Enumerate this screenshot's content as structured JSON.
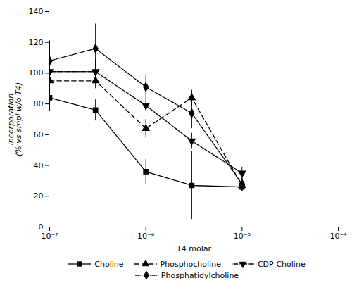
{
  "chart_data": {
    "type": "line",
    "xlabel": "T4 molar",
    "ylabel": "incorporation\n(% vs smpl w/o T4)",
    "log": "x",
    "xlim": [
      1e-07,
      0.0001
    ],
    "xticks": [
      {
        "value": 1e-07,
        "label": "10⁻⁷"
      },
      {
        "value": 1e-06,
        "label": "10⁻⁶"
      },
      {
        "value": 1e-05,
        "label": "10⁻⁵"
      },
      {
        "value": 0.0001,
        "label": "10⁻⁴"
      }
    ],
    "ylim": [
      0,
      140
    ],
    "yticks": [
      0,
      20,
      40,
      60,
      80,
      100,
      120,
      140
    ],
    "color": "black",
    "legend": "bottom",
    "x": [
      1e-07,
      3e-07,
      1e-06,
      3e-06,
      1e-05
    ],
    "series": [
      {
        "name": "Choline",
        "values": [
          84,
          76,
          36,
          27,
          26
        ],
        "yerr": [
          9,
          7,
          8,
          22,
          3
        ],
        "marker": "square",
        "line_style": "solid"
      },
      {
        "name": "Phosphocholine",
        "values": [
          95,
          95,
          64,
          84,
          27
        ],
        "yerr": [
          6,
          5,
          6,
          5,
          4
        ],
        "marker": "triangle-up",
        "line_style": "dashed"
      },
      {
        "name": "CDP-Choline",
        "values": [
          101,
          101,
          79,
          56,
          35
        ],
        "yerr": [
          8,
          8,
          4,
          5,
          4
        ],
        "marker": "triangle-down",
        "line_style": "dotted_dash"
      },
      {
        "name": "Phosphatidylcholine",
        "values": [
          108,
          116,
          91,
          74,
          28
        ],
        "yerr": [
          13,
          16,
          8,
          10,
          5
        ],
        "marker": "diamond",
        "line_style": "dashdot"
      }
    ]
  }
}
